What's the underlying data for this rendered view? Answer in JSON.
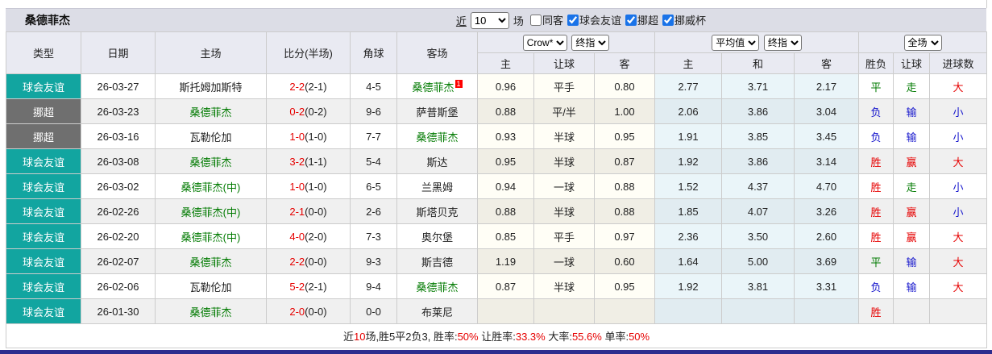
{
  "title_bar": {
    "team": "桑德菲杰",
    "recent": "近",
    "count": "10",
    "games": "场",
    "filters": [
      {
        "label": "同客",
        "checked": false
      },
      {
        "label": "球会友谊",
        "checked": true
      },
      {
        "label": "挪超",
        "checked": true
      },
      {
        "label": "挪威杯",
        "checked": true
      }
    ]
  },
  "header": {
    "type": "类型",
    "date": "日期",
    "home": "主场",
    "score": "比分(半场)",
    "corners": "角球",
    "away": "客场",
    "groups": {
      "handicap": {
        "selects": [
          "Crow*",
          "终指"
        ],
        "sub": [
          "主",
          "让球",
          "客"
        ]
      },
      "europe": {
        "selects": [
          "平均值",
          "终指"
        ],
        "sub": [
          "主",
          "和",
          "客"
        ]
      },
      "result": {
        "selects": [
          "全场"
        ],
        "sub": [
          "胜负",
          "让球",
          "进球数"
        ]
      }
    }
  },
  "rows": [
    {
      "league": "球会友谊",
      "date": "26-03-27",
      "home": "斯托姆加斯特",
      "score": "2-2",
      "half": "2-1",
      "corners": "4-5",
      "away": "桑德菲杰",
      "away_badge": "1",
      "h_home": "0.96",
      "h_line": "平手",
      "h_away": "0.80",
      "e_home": "2.77",
      "e_draw": "3.71",
      "e_away": "2.17",
      "r_result": "平",
      "r_handicap": "走",
      "r_goals": "大"
    },
    {
      "league": "挪超",
      "date": "26-03-23",
      "home": "桑德菲杰",
      "score": "0-2",
      "half": "0-2",
      "corners": "9-6",
      "away": "萨普斯堡",
      "away_badge": null,
      "h_home": "0.88",
      "h_line": "平/半",
      "h_away": "1.00",
      "e_home": "2.06",
      "e_draw": "3.86",
      "e_away": "3.04",
      "r_result": "负",
      "r_handicap": "输",
      "r_goals": "小"
    },
    {
      "league": "挪超",
      "date": "26-03-16",
      "home": "瓦勒伦加",
      "score": "1-0",
      "half": "1-0",
      "corners": "7-7",
      "away": "桑德菲杰",
      "away_badge": null,
      "h_home": "0.93",
      "h_line": "半球",
      "h_away": "0.95",
      "e_home": "1.91",
      "e_draw": "3.85",
      "e_away": "3.45",
      "r_result": "负",
      "r_handicap": "输",
      "r_goals": "小"
    },
    {
      "league": "球会友谊",
      "date": "26-03-08",
      "home": "桑德菲杰",
      "score": "3-2",
      "half": "1-1",
      "corners": "5-4",
      "away": "斯达",
      "away_badge": null,
      "h_home": "0.95",
      "h_line": "半球",
      "h_away": "0.87",
      "e_home": "1.92",
      "e_draw": "3.86",
      "e_away": "3.14",
      "r_result": "胜",
      "r_handicap": "赢",
      "r_goals": "大"
    },
    {
      "league": "球会友谊",
      "date": "26-03-02",
      "home": "桑德菲杰(中)",
      "score": "1-0",
      "half": "1-0",
      "corners": "6-5",
      "away": "兰黑姆",
      "away_badge": null,
      "h_home": "0.94",
      "h_line": "一球",
      "h_away": "0.88",
      "e_home": "1.52",
      "e_draw": "4.37",
      "e_away": "4.70",
      "r_result": "胜",
      "r_handicap": "走",
      "r_goals": "小"
    },
    {
      "league": "球会友谊",
      "date": "26-02-26",
      "home": "桑德菲杰(中)",
      "score": "2-1",
      "half": "0-0",
      "corners": "2-6",
      "away": "斯塔贝克",
      "away_badge": null,
      "h_home": "0.88",
      "h_line": "半球",
      "h_away": "0.88",
      "e_home": "1.85",
      "e_draw": "4.07",
      "e_away": "3.26",
      "r_result": "胜",
      "r_handicap": "赢",
      "r_goals": "小"
    },
    {
      "league": "球会友谊",
      "date": "26-02-20",
      "home": "桑德菲杰(中)",
      "score": "4-0",
      "half": "2-0",
      "corners": "7-3",
      "away": "奥尔堡",
      "away_badge": null,
      "h_home": "0.85",
      "h_line": "平手",
      "h_away": "0.97",
      "e_home": "2.36",
      "e_draw": "3.50",
      "e_away": "2.60",
      "r_result": "胜",
      "r_handicap": "赢",
      "r_goals": "大"
    },
    {
      "league": "球会友谊",
      "date": "26-02-07",
      "home": "桑德菲杰",
      "score": "2-2",
      "half": "0-0",
      "corners": "9-3",
      "away": "斯吉德",
      "away_badge": null,
      "h_home": "1.19",
      "h_line": "一球",
      "h_away": "0.60",
      "e_home": "1.64",
      "e_draw": "5.00",
      "e_away": "3.69",
      "r_result": "平",
      "r_handicap": "输",
      "r_goals": "大"
    },
    {
      "league": "球会友谊",
      "date": "26-02-06",
      "home": "瓦勒伦加",
      "score": "5-2",
      "half": "2-1",
      "corners": "9-4",
      "away": "桑德菲杰",
      "away_badge": null,
      "h_home": "0.87",
      "h_line": "半球",
      "h_away": "0.95",
      "e_home": "1.92",
      "e_draw": "3.81",
      "e_away": "3.31",
      "r_result": "负",
      "r_handicap": "输",
      "r_goals": "大"
    },
    {
      "league": "球会友谊",
      "date": "26-01-30",
      "home": "桑德菲杰",
      "score": "2-0",
      "half": "0-0",
      "corners": "0-0",
      "away": "布莱尼",
      "away_badge": null,
      "h_home": "",
      "h_line": "",
      "h_away": "",
      "e_home": "",
      "e_draw": "",
      "e_away": "",
      "r_result": "胜",
      "r_handicap": "",
      "r_goals": ""
    }
  ],
  "summary": {
    "segments": [
      {
        "text": "近",
        "red": false
      },
      {
        "text": "10",
        "red": true
      },
      {
        "text": "场,胜5平2负3, 胜率:",
        "red": false
      },
      {
        "text": "50%",
        "red": true
      },
      {
        "text": " 让胜率:",
        "red": false
      },
      {
        "text": "33.3%",
        "red": true
      },
      {
        "text": " 大率:",
        "red": false
      },
      {
        "text": "55.6%",
        "red": true
      },
      {
        "text": " 单率:",
        "red": false
      },
      {
        "text": "50%",
        "red": true
      }
    ]
  },
  "colors": {
    "teal": "#12A5A0",
    "league_gray": "#6F6F6F",
    "red": "#E60000",
    "green": "#007A00",
    "blue": "#1414CC",
    "badge_red": "#FF0000",
    "titlebar_bg": "#DCDDE6",
    "header_bg": "#E9EAF2",
    "bottom_bar": "#2D2D8E"
  }
}
